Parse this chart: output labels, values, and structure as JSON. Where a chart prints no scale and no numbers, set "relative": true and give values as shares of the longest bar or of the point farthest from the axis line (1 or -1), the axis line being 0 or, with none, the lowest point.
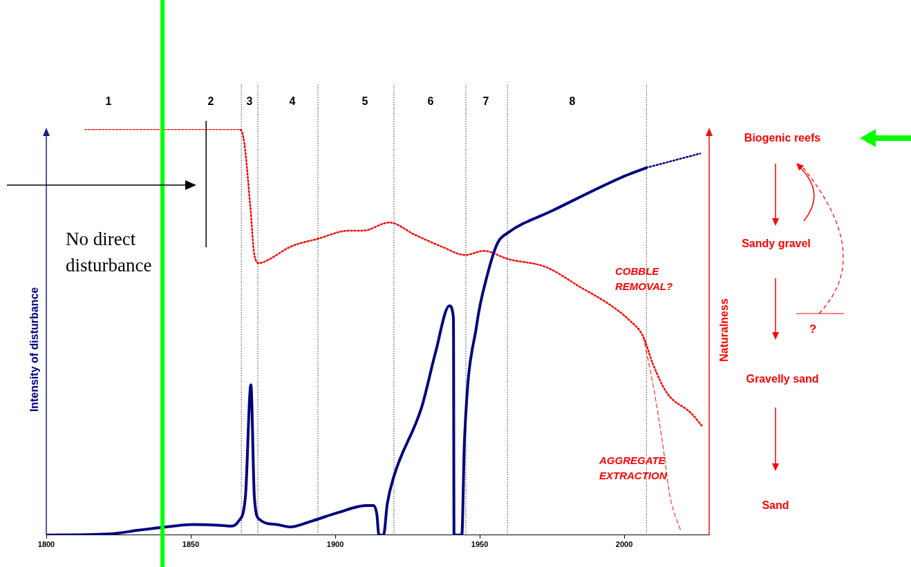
{
  "chart_data": {
    "type": "line",
    "relative": true,
    "ylabel": "Intensity of disturbance",
    "y2label": "Naturalness",
    "xlim": [
      1800,
      2029.4
    ],
    "xticks": [
      1800,
      1850,
      1900,
      1950,
      2000
    ],
    "grid": false,
    "legend": false,
    "marker": "none",
    "series": [
      {
        "color": "#000080",
        "x": [
          1800,
          1822.2,
          1831.8,
          1841.4,
          1850.5,
          1860.5,
          1864,
          1866.5,
          1868.9,
          1870.8,
          1872,
          1873.7,
          1879.7,
          1884.4,
          1891.6,
          1901.2,
          1910.8,
          1913.2,
          1914.4,
          1915.1,
          1916.7,
          1918,
          1920.3,
          1929.9,
          1934.7,
          1939.5,
          1940.9,
          1941.1,
          1943.8,
          1944.7,
          1949,
          1952.6,
          1956.2,
          1959.8,
          1975.4,
          2000,
          2007.7
        ],
        "values": [
          0,
          0.003,
          0.012,
          0.02,
          0.026,
          0.024,
          0.022,
          0.034,
          0.094,
          0.37,
          0.094,
          0.039,
          0.026,
          0.02,
          0.034,
          0.056,
          0.073,
          0.073,
          0.051,
          0,
          0,
          0.077,
          0.145,
          0.315,
          0.45,
          0.565,
          0.535,
          0,
          0,
          0.23,
          0.52,
          0.64,
          0.72,
          0.745,
          0.8,
          0.884,
          0.905
        ]
      },
      {
        "color": "#000080",
        "line_style": "dotted",
        "x": [
          2007.7,
          2026.3
        ],
        "values": [
          0.905,
          0.94
        ]
      },
      {
        "color": "#ff0000",
        "line_style": "dotted",
        "x": [
          1813.4,
          1866.5,
          1868.2,
          1870.6,
          1872,
          1873.7,
          1877.3,
          1884.4,
          1894,
          1904.8,
          1909.6,
          1918.7,
          1927.5,
          1937,
          1945,
          1951.4,
          1959.8,
          1973,
          1985,
          1994.5,
          2001.7,
          2006.5,
          2010,
          2014.8,
          2023.2,
          2026.8
        ],
        "values": [
          1,
          1,
          0.98,
          0.81,
          0.69,
          0.67,
          0.68,
          0.71,
          0.73,
          0.75,
          0.75,
          0.77,
          0.74,
          0.71,
          0.69,
          0.7,
          0.68,
          0.66,
          0.61,
          0.57,
          0.53,
          0.49,
          0.42,
          0.35,
          0.3,
          0.27
        ]
      },
      {
        "color": "#ff0000",
        "line_style": "dashed",
        "x": [
          2006.5,
          2010,
          2013.2,
          2016,
          2019.6
        ],
        "values": [
          0.49,
          0.37,
          0.23,
          0.09,
          0.01
        ]
      }
    ],
    "ref_lines": [
      {
        "axis": "x",
        "value": 1840.2,
        "color": "#00ff00"
      },
      {
        "axis": "x",
        "value": 1855.3,
        "color": "#000000"
      },
      {
        "axis": "x",
        "value": 1867.5,
        "color": "#000000",
        "line_style": "dotted"
      },
      {
        "axis": "x",
        "value": 1873.2,
        "color": "#000000",
        "line_style": "dotted"
      },
      {
        "axis": "x",
        "value": 1894,
        "color": "#000000",
        "line_style": "dotted"
      },
      {
        "axis": "x",
        "value": 1920.3,
        "color": "#000000",
        "line_style": "dotted"
      },
      {
        "axis": "x",
        "value": 1945.2,
        "color": "#000000",
        "line_style": "dotted"
      },
      {
        "axis": "x",
        "value": 1959.6,
        "color": "#000000",
        "line_style": "dotted"
      },
      {
        "axis": "x",
        "value": 2007.7,
        "color": "#000000",
        "line_style": "dotted"
      }
    ],
    "annotations": [
      "No direct disturbance",
      "COBBLE REMOVAL?",
      "AGGREGATE EXTRACTION",
      "Biogenic reefs",
      "Sandy gravel",
      "?",
      "Gravelly sand",
      "Sand",
      "1",
      "2",
      "3",
      "4",
      "5",
      "6",
      "7",
      "8"
    ]
  }
}
